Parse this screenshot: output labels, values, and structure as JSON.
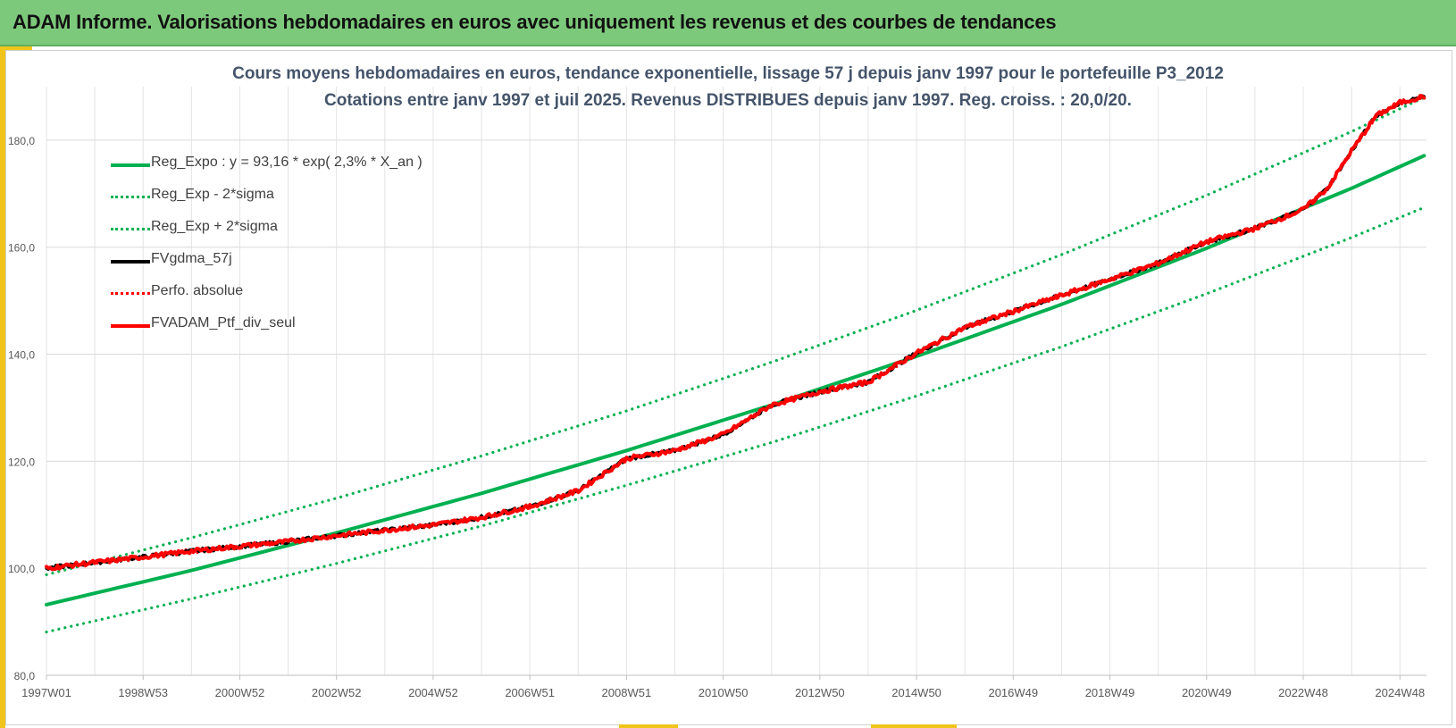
{
  "header": {
    "title": "ADAM Informe. Valorisations hebdomadaires en euros avec uniquement les revenus et des courbes de tendances"
  },
  "colors": {
    "header_bg": "#7dc97b",
    "accent": "#f0c419",
    "trend_green": "#00b050",
    "portfolio_red": "#ff0000",
    "smooth_black": "#000000",
    "title_text": "#44546a"
  },
  "chart_data": {
    "type": "line",
    "title": "Cours moyens hebdomadaires  en euros, tendance exponentielle, lissage 57 j depuis janv 1997 pour le portefeuille P3_2012",
    "subtitle": "Cotations entre janv 1997 et juil 2025. Revenus DISTRIBUES depuis janv 1997. Reg. croiss. : 20,0/20.",
    "xlabel": "",
    "ylabel": "",
    "x_range": [
      1997.0,
      2025.55
    ],
    "ylim": [
      80,
      190
    ],
    "y_ticks": [
      80,
      100,
      120,
      140,
      160,
      180
    ],
    "y_tick_labels": [
      "80,0",
      "100,0",
      "120,0",
      "140,0",
      "160,0",
      "180,0"
    ],
    "x_ticks": [
      {
        "x": 1997.0,
        "label": "1997W01"
      },
      {
        "x": 1999.0,
        "label": "1998W53"
      },
      {
        "x": 2001.0,
        "label": "2000W52"
      },
      {
        "x": 2003.0,
        "label": "2002W52"
      },
      {
        "x": 2005.0,
        "label": "2004W52"
      },
      {
        "x": 2007.0,
        "label": "2006W51"
      },
      {
        "x": 2009.0,
        "label": "2008W51"
      },
      {
        "x": 2011.0,
        "label": "2010W50"
      },
      {
        "x": 2013.0,
        "label": "2012W50"
      },
      {
        "x": 2015.0,
        "label": "2014W50"
      },
      {
        "x": 2017.0,
        "label": "2016W49"
      },
      {
        "x": 2019.0,
        "label": "2018W49"
      },
      {
        "x": 2021.0,
        "label": "2020W49"
      },
      {
        "x": 2023.0,
        "label": "2022W48"
      },
      {
        "x": 2025.0,
        "label": "2024W48"
      }
    ],
    "grid": true,
    "legend_position": "top-left",
    "series": [
      {
        "name": "Reg_Expo : y = 93,16 * exp( 2,3% *  X_an )",
        "color": "#00b050",
        "style": "solid",
        "x": [
          1997.0,
          2000.0,
          2003.0,
          2006.0,
          2009.0,
          2012.0,
          2015.0,
          2018.0,
          2021.0,
          2024.0,
          2025.55
        ],
        "y": [
          93.2,
          99.6,
          106.6,
          114.0,
          122.0,
          130.5,
          139.6,
          149.3,
          159.8,
          171.0,
          177.3
        ]
      },
      {
        "name": "Reg_Exp - 2*sigma",
        "color": "#00b050",
        "style": "dotted",
        "x": [
          1997.0,
          2000.0,
          2003.0,
          2006.0,
          2009.0,
          2012.0,
          2015.0,
          2018.0,
          2021.0,
          2024.0,
          2025.55
        ],
        "y": [
          88.1,
          94.3,
          100.9,
          107.9,
          115.5,
          123.5,
          132.2,
          141.4,
          151.3,
          161.8,
          167.6
        ]
      },
      {
        "name": "Reg_Exp + 2*sigma",
        "color": "#00b050",
        "style": "dotted",
        "x": [
          1997.0,
          2000.0,
          2003.0,
          2006.0,
          2009.0,
          2012.0,
          2015.0,
          2018.0,
          2021.0,
          2024.0,
          2025.55
        ],
        "y": [
          98.8,
          105.7,
          113.1,
          121.0,
          129.4,
          138.5,
          148.2,
          158.6,
          169.7,
          181.6,
          188.2
        ]
      },
      {
        "name": "FVgdma_57j",
        "color": "#000000",
        "style": "solid",
        "x": [
          1997.0,
          1998.0,
          1999.0,
          2000.0,
          2001.0,
          2002.0,
          2003.0,
          2004.0,
          2005.0,
          2006.0,
          2007.0,
          2008.0,
          2009.0,
          2010.0,
          2011.0,
          2012.0,
          2013.0,
          2014.0,
          2015.0,
          2016.0,
          2017.0,
          2018.0,
          2019.0,
          2020.0,
          2021.0,
          2022.0,
          2023.0,
          2023.5,
          2024.0,
          2024.5,
          2025.0,
          2025.5
        ],
        "y": [
          100.0,
          101.1,
          102.1,
          103.2,
          104.1,
          105.0,
          106.1,
          107.1,
          108.1,
          109.5,
          111.5,
          114.5,
          120.5,
          122.0,
          125.0,
          130.5,
          133.0,
          134.8,
          140.2,
          145.0,
          148.0,
          151.0,
          154.0,
          157.0,
          161.0,
          163.5,
          167.0,
          171.0,
          178.0,
          184.5,
          187.0,
          188.2
        ]
      },
      {
        "name": "Perfo. absolue",
        "color": "#ff0000",
        "style": "dotted",
        "x": [
          1997.0,
          1998.0,
          1999.0,
          2000.0,
          2001.0,
          2002.0,
          2003.0,
          2004.0,
          2005.0,
          2006.0,
          2007.0,
          2008.0,
          2009.0,
          2010.0,
          2011.0,
          2012.0,
          2013.0,
          2014.0,
          2015.0,
          2016.0,
          2017.0,
          2018.0,
          2019.0,
          2020.0,
          2021.0,
          2022.0,
          2023.0,
          2023.5,
          2024.0,
          2024.5,
          2025.0,
          2025.5
        ],
        "y": [
          100.0,
          101.1,
          102.1,
          103.2,
          104.1,
          105.0,
          106.1,
          107.1,
          108.1,
          109.5,
          111.5,
          114.5,
          120.5,
          122.0,
          125.0,
          130.5,
          133.0,
          134.8,
          140.2,
          145.0,
          148.0,
          151.0,
          154.0,
          157.0,
          161.0,
          163.5,
          167.0,
          171.0,
          178.0,
          184.5,
          187.0,
          188.2
        ]
      },
      {
        "name": "FVADAM_Ptf_div_seul",
        "color": "#ff0000",
        "style": "solid",
        "x": [
          1997.0,
          1998.0,
          1999.0,
          2000.0,
          2001.0,
          2002.0,
          2003.0,
          2004.0,
          2005.0,
          2006.0,
          2007.0,
          2008.0,
          2009.0,
          2010.0,
          2011.0,
          2012.0,
          2013.0,
          2014.0,
          2015.0,
          2016.0,
          2017.0,
          2018.0,
          2019.0,
          2020.0,
          2021.0,
          2022.0,
          2023.0,
          2023.5,
          2024.0,
          2024.5,
          2025.0,
          2025.5
        ],
        "y": [
          100.0,
          101.1,
          102.1,
          103.2,
          104.1,
          105.0,
          106.1,
          107.1,
          108.1,
          109.5,
          111.5,
          114.5,
          120.5,
          122.0,
          125.0,
          130.5,
          133.0,
          134.8,
          140.2,
          145.0,
          148.0,
          151.0,
          154.0,
          157.0,
          161.0,
          163.5,
          167.0,
          171.0,
          178.0,
          184.5,
          187.0,
          188.2
        ]
      }
    ]
  }
}
